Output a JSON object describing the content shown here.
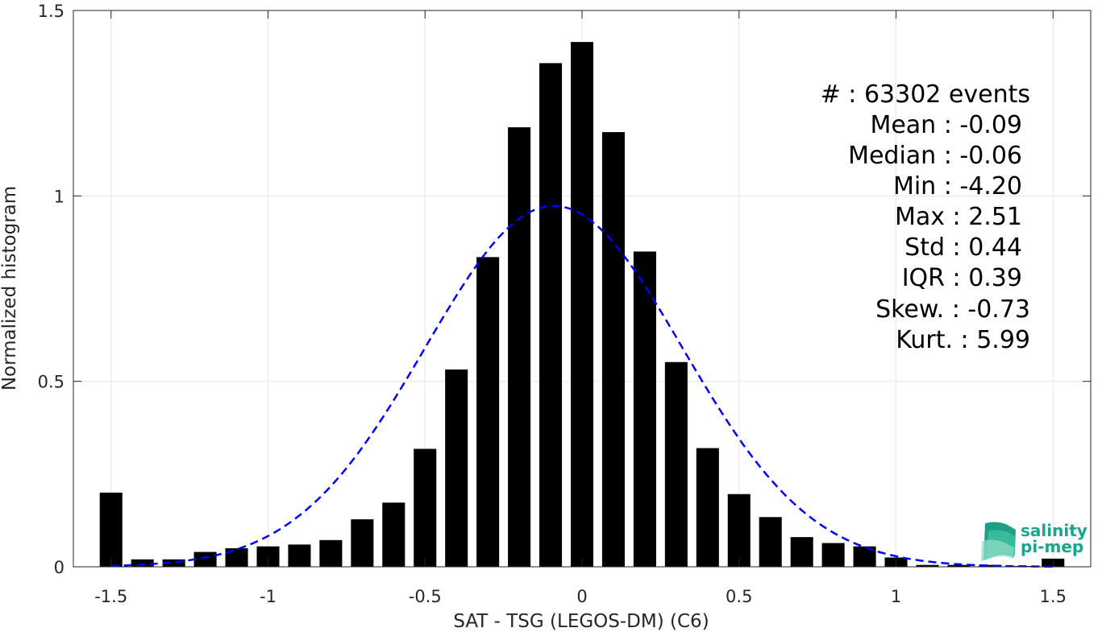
{
  "chart_data": {
    "type": "bar",
    "xlabel": "SAT - TSG (LEGOS-DM) (C6)",
    "ylabel": "Normalized histogram",
    "xlim": [
      -1.62,
      1.62
    ],
    "ylim": [
      0,
      1.5
    ],
    "xticks": [
      -1.5,
      -1,
      -0.5,
      0,
      0.5,
      1,
      1.5
    ],
    "xtick_labels": [
      "-1.5",
      "-1",
      "-0.5",
      "0",
      "0.5",
      "1",
      "1.5"
    ],
    "yticks": [
      0,
      0.5,
      1,
      1.5
    ],
    "ytick_labels": [
      "0",
      "0.5",
      "1",
      "1.5"
    ],
    "grid": true,
    "bar_color": "#000000",
    "bin_width": 0.1,
    "bin_centers": [
      -1.5,
      -1.4,
      -1.3,
      -1.2,
      -1.1,
      -1.0,
      -0.9,
      -0.8,
      -0.7,
      -0.6,
      -0.5,
      -0.4,
      -0.3,
      -0.2,
      -0.1,
      0.0,
      0.1,
      0.2,
      0.3,
      0.4,
      0.5,
      0.6,
      0.7,
      0.8,
      0.9,
      1.0,
      1.1,
      1.2,
      1.3,
      1.4,
      1.5
    ],
    "values": [
      0.2,
      0.02,
      0.02,
      0.04,
      0.05,
      0.055,
      0.06,
      0.072,
      0.128,
      0.173,
      0.318,
      0.532,
      0.835,
      1.185,
      1.358,
      1.415,
      1.172,
      0.85,
      0.552,
      0.32,
      0.196,
      0.134,
      0.08,
      0.064,
      0.055,
      0.025,
      0.005,
      0.005,
      0.005,
      0.002,
      0.022
    ],
    "fit": {
      "type": "gaussian",
      "mean": -0.09,
      "std": 0.41,
      "color": "#0000ff",
      "style": "dashed"
    }
  },
  "stats": [
    {
      "label": "#  : 63302 events"
    },
    {
      "label": "Mean : -0.09"
    },
    {
      "label": "Median : -0.06"
    },
    {
      "label": "Min : -4.20"
    },
    {
      "label": "Max : 2.51"
    },
    {
      "label": "Std : 0.44"
    },
    {
      "label": "IQR : 0.39"
    },
    {
      "label": "Skew. : -0.73"
    },
    {
      "label": "Kurt. : 5.99"
    }
  ],
  "logo": {
    "line1": "salinity",
    "line2": "pi-mep",
    "color": "#1aa58a"
  }
}
